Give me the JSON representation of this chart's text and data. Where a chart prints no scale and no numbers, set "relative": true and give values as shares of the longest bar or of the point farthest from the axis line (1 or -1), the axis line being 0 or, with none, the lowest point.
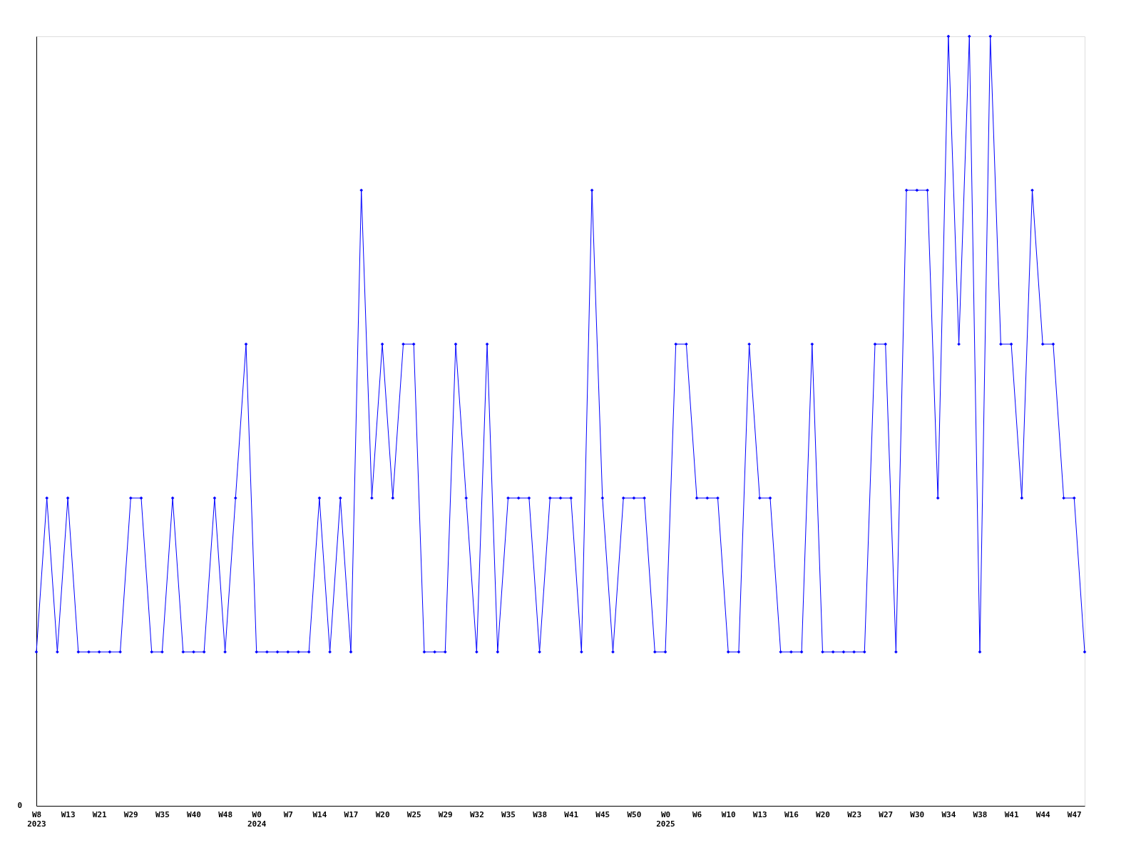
{
  "chart_data": {
    "type": "line",
    "relative": true,
    "marker": "diamond",
    "line_style": "solid",
    "grid": false,
    "annotations": [
      "0"
    ],
    "categories": [
      "W8\n2023",
      null,
      null,
      "W13",
      null,
      null,
      "W21",
      null,
      null,
      "W29",
      null,
      null,
      "W35",
      null,
      null,
      "W40",
      null,
      null,
      "W48",
      null,
      null,
      "W0\n2024",
      null,
      null,
      "W7",
      null,
      null,
      "W14",
      null,
      null,
      "W17",
      null,
      null,
      "W20",
      null,
      null,
      "W25",
      null,
      null,
      "W29",
      null,
      null,
      "W32",
      null,
      null,
      "W35",
      null,
      null,
      "W38",
      null,
      null,
      "W41",
      null,
      null,
      "W45",
      null,
      null,
      "W50",
      null,
      null,
      "W0\n2025",
      null,
      null,
      "W6",
      null,
      null,
      "W10",
      null,
      null,
      "W13",
      null,
      null,
      "W16",
      null,
      null,
      "W20",
      null,
      null,
      "W23",
      null,
      null,
      "W27",
      null,
      null,
      "W30",
      null,
      null,
      "W34",
      null,
      null,
      "W38",
      null,
      null,
      "W41",
      null,
      null,
      "W44",
      null,
      null,
      "W47",
      null
    ],
    "series": [
      {
        "color": "#0000ff",
        "values": [
          0.2,
          0.4,
          0.2,
          0.4,
          0.2,
          0.2,
          0.2,
          0.2,
          0.2,
          0.4,
          0.4,
          0.2,
          0.2,
          0.4,
          0.2,
          0.2,
          0.2,
          0.4,
          0.2,
          0.4,
          0.6,
          0.2,
          0.2,
          0.2,
          0.2,
          0.2,
          0.2,
          0.4,
          0.2,
          0.4,
          0.2,
          0.8,
          0.4,
          0.6,
          0.4,
          0.6,
          0.6,
          0.2,
          0.2,
          0.2,
          0.6,
          0.4,
          0.2,
          0.6,
          0.2,
          0.4,
          0.4,
          0.4,
          0.2,
          0.4,
          0.4,
          0.4,
          0.2,
          0.8,
          0.4,
          0.2,
          0.4,
          0.4,
          0.4,
          0.2,
          0.2,
          0.6,
          0.6,
          0.4,
          0.4,
          0.4,
          0.2,
          0.2,
          0.6,
          0.4,
          0.4,
          0.2,
          0.2,
          0.2,
          0.6,
          0.2,
          0.2,
          0.2,
          0.2,
          0.2,
          0.6,
          0.6,
          0.2,
          0.8,
          0.8,
          0.8,
          0.4,
          1,
          0.6,
          1,
          0.2,
          1,
          0.6,
          0.6,
          0.4,
          0.8,
          0.6,
          0.6,
          0.4,
          0.4,
          0.2
        ]
      }
    ]
  }
}
